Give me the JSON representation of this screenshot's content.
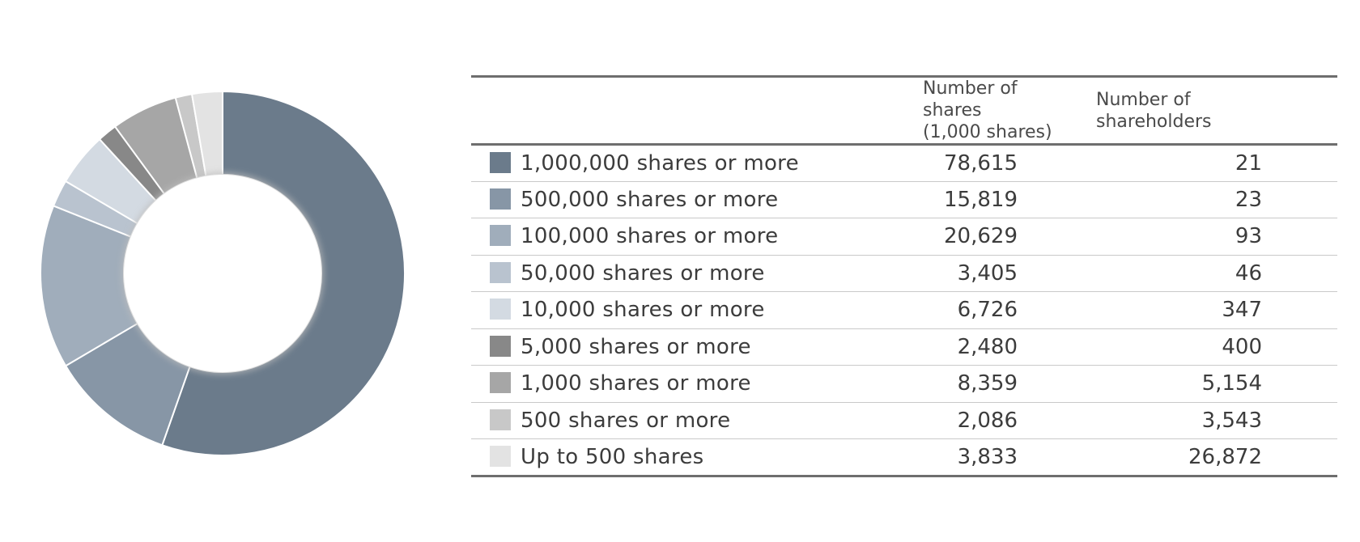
{
  "table": {
    "headers": {
      "shares": [
        "Number of shares",
        "(1,000 shares)"
      ],
      "holders": [
        "Number of",
        "shareholders"
      ]
    },
    "rows": [
      {
        "label": "1,000,000 shares or more",
        "shares": "78,615",
        "holders": "21",
        "color": "#6b7b8b"
      },
      {
        "label": "500,000 shares or more",
        "shares": "15,819",
        "holders": "23",
        "color": "#8796a6"
      },
      {
        "label": "100,000 shares or more",
        "shares": "20,629",
        "holders": "93",
        "color": "#a0adbb"
      },
      {
        "label": "50,000 shares or more",
        "shares": "3,405",
        "holders": "46",
        "color": "#b9c3cf"
      },
      {
        "label": "10,000 shares or more",
        "shares": "6,726",
        "holders": "347",
        "color": "#d3dae2"
      },
      {
        "label": "5,000 shares or more",
        "shares": "2,480",
        "holders": "400",
        "color": "#888888"
      },
      {
        "label": "1,000 shares or more",
        "shares": "8,359",
        "holders": "5,154",
        "color": "#a6a6a6"
      },
      {
        "label": "500 shares or more",
        "shares": "2,086",
        "holders": "3,543",
        "color": "#c8c8c8"
      },
      {
        "label": "Up to 500 shares",
        "shares": "3,833",
        "holders": "26,872",
        "color": "#e3e3e3"
      }
    ]
  },
  "chart_data": {
    "type": "pie",
    "variant": "donut",
    "categories": [
      "1,000,000 shares or more",
      "500,000 shares or more",
      "100,000 shares or more",
      "50,000 shares or more",
      "10,000 shares or more",
      "5,000 shares or more",
      "1,000 shares or more",
      "500 shares or more",
      "Up to 500 shares"
    ],
    "values": [
      78615,
      15819,
      20629,
      3405,
      6726,
      2480,
      8359,
      2086,
      3833
    ],
    "colors": [
      "#6b7b8b",
      "#8796a6",
      "#a0adbb",
      "#b9c3cf",
      "#d3dae2",
      "#888888",
      "#a6a6a6",
      "#c8c8c8",
      "#e3e3e3"
    ],
    "start": "top, clockwise",
    "legend": "table-right"
  }
}
